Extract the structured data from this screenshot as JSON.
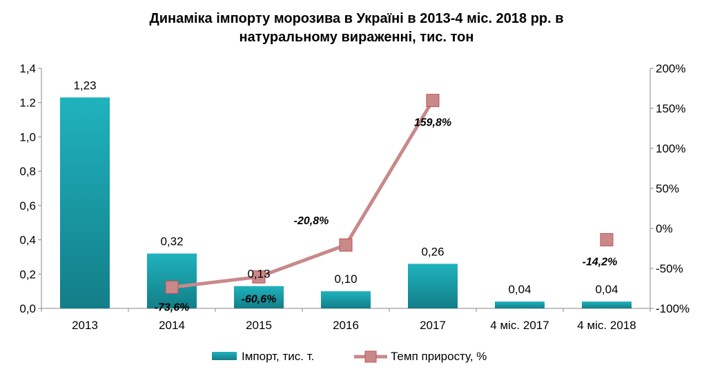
{
  "chart_data": {
    "type": "bar+line",
    "title_line1": "Динаміка імпорту морозива в Україні в 2013-4 міс. 2018 рр. в",
    "title_line2": "натуральному вираженні, тис. тон",
    "categories": [
      "2013",
      "2014",
      "2015",
      "2016",
      "2017",
      "4 міс. 2017",
      "4 міс. 2018"
    ],
    "left_axis": {
      "ylim": [
        0,
        1.4
      ],
      "ticks": [
        0,
        0.2,
        0.4,
        0.6,
        0.8,
        1.0,
        1.2,
        1.4
      ],
      "tick_labels": [
        "0,0",
        "0,2",
        "0,4",
        "0,6",
        "0,8",
        "1,0",
        "1.2",
        "1,4"
      ]
    },
    "right_axis": {
      "ylim": [
        -100,
        200
      ],
      "ticks": [
        -100,
        -50,
        0,
        50,
        100,
        150,
        200
      ],
      "tick_labels": [
        "-100%",
        "-50%",
        "0%",
        "50%",
        "100%",
        "150%",
        "200%"
      ]
    },
    "bar_series": {
      "name": "Імпорт, тис. т.",
      "values": [
        1.23,
        0.32,
        0.13,
        0.1,
        0.26,
        0.04,
        0.04
      ],
      "labels": [
        "1,23",
        "0,32",
        "0,13",
        "0,10",
        "0,26",
        "0,04",
        "0,04"
      ],
      "color": "#1aa0ab"
    },
    "line_series": {
      "name": "Темп приросту, %",
      "values": [
        null,
        -73.6,
        -60.6,
        -20.8,
        159.8,
        null,
        -14.2
      ],
      "labels": [
        "",
        "-73,6%",
        "-60,6%",
        "-20,8%",
        "159,8%",
        "",
        "-14,2%"
      ],
      "connected_through": 5,
      "color": "#c8898a",
      "marker_color": "#c0504d"
    },
    "legend": {
      "placement": "bottom"
    },
    "grid": false
  }
}
